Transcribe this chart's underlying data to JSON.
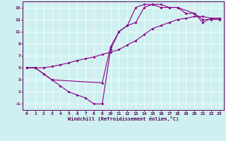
{
  "xlabel": "Windchill (Refroidissement éolien,°C)",
  "bg_color": "#cff0f0",
  "line_color": "#880088",
  "grid_color": "#ffffff",
  "xlim": [
    -0.5,
    23.5
  ],
  "ylim": [
    -2,
    16
  ],
  "xticks": [
    0,
    1,
    2,
    3,
    4,
    5,
    6,
    7,
    8,
    9,
    10,
    11,
    12,
    13,
    14,
    15,
    16,
    17,
    18,
    19,
    20,
    21,
    22,
    23
  ],
  "yticks": [
    -1,
    1,
    3,
    5,
    7,
    9,
    11,
    13,
    15
  ],
  "series1_x": [
    0,
    1,
    2,
    3,
    4,
    5,
    6,
    7,
    8,
    9,
    10,
    11,
    12,
    13,
    14,
    15,
    16,
    17,
    18,
    19,
    20,
    21,
    22,
    23
  ],
  "series1_y": [
    5,
    5,
    4,
    3,
    2,
    1,
    0.5,
    0,
    -1,
    -1,
    8,
    11,
    12,
    15,
    15.5,
    15.5,
    15,
    15,
    15,
    14,
    14,
    13,
    13,
    13
  ],
  "series2_x": [
    0,
    1,
    2,
    3,
    4,
    5,
    6,
    7,
    8,
    9,
    10,
    11,
    12,
    13,
    14,
    15,
    16,
    17,
    18,
    19,
    20,
    21,
    22,
    23
  ],
  "series2_y": [
    5,
    5,
    5,
    5.2,
    5.5,
    5.8,
    6.2,
    6.5,
    6.8,
    7.2,
    7.6,
    8.0,
    8.8,
    9.5,
    10.5,
    11.5,
    12.0,
    12.5,
    13.0,
    13.2,
    13.5,
    13.5,
    13.2,
    13.2
  ],
  "series3_x": [
    0,
    1,
    2,
    3,
    9,
    10,
    11,
    12,
    13,
    14,
    15,
    16,
    17,
    18,
    20,
    21,
    22,
    23
  ],
  "series3_y": [
    5,
    5,
    4,
    3,
    2.5,
    8.5,
    11,
    12,
    12.5,
    15,
    15.5,
    15.5,
    15,
    15,
    14,
    12.5,
    13.2,
    13.2
  ]
}
